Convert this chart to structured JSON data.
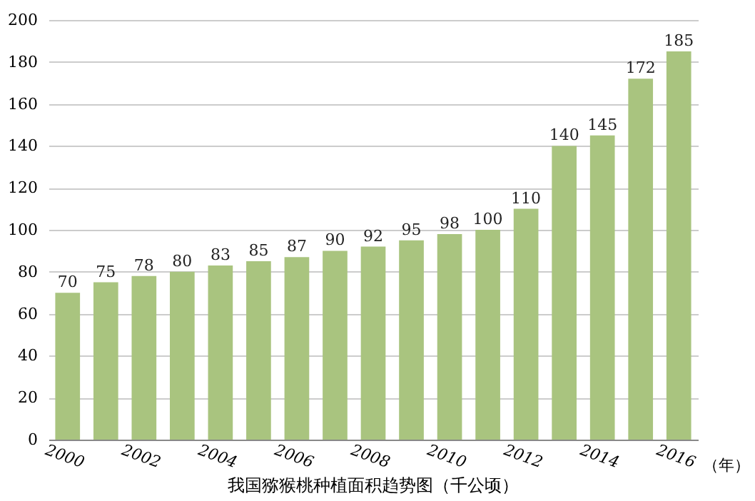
{
  "chart_data": {
    "type": "bar",
    "title": "我国猕猴桃种植面积趋势图（千公顷）",
    "xlabel": "（年）",
    "categories": [
      "2000",
      null,
      "2002",
      null,
      "2004",
      null,
      "2006",
      null,
      "2008",
      null,
      "2010",
      null,
      "2012",
      null,
      "2014",
      null,
      "2016"
    ],
    "values": [
      70,
      75,
      78,
      80,
      83,
      85,
      87,
      90,
      92,
      95,
      98,
      100,
      110,
      140,
      145,
      172,
      185
    ],
    "color": "#a9c47f",
    "ylim": [
      0,
      200
    ],
    "yticks": [
      0,
      20,
      40,
      60,
      80,
      100,
      120,
      140,
      160,
      180,
      200
    ],
    "grid": "y",
    "data_labels": true
  }
}
